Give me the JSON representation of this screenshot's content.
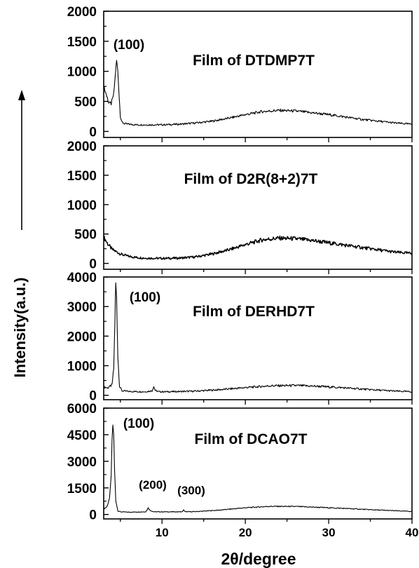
{
  "figure": {
    "ylabel": "Intensity(a.u.)",
    "xlabel": "2θ/degree"
  },
  "chart_data": [
    {
      "type": "line",
      "title": "Film of DTDMP7T",
      "xlim": [
        3,
        40
      ],
      "ylim": [
        -100,
        2000
      ],
      "yticks": [
        0,
        500,
        1000,
        1500,
        2000
      ],
      "xticks": [
        10,
        20,
        30,
        40
      ],
      "annotations": [
        {
          "text": "(100)",
          "x": 4.7,
          "y": 1480
        }
      ],
      "series": [
        {
          "x": [
            3,
            3.3,
            3.6,
            3.9,
            4.2,
            4.4,
            4.55,
            4.7,
            4.85,
            5.0,
            5.2,
            5.5,
            6,
            7,
            8,
            10,
            12,
            14,
            16,
            18,
            20,
            22,
            24,
            26,
            28,
            30,
            32,
            34,
            36,
            38,
            40
          ],
          "y": [
            750,
            620,
            480,
            460,
            620,
            950,
            1180,
            1000,
            600,
            250,
            150,
            130,
            120,
            110,
            110,
            110,
            120,
            140,
            170,
            220,
            280,
            330,
            350,
            340,
            310,
            280,
            240,
            200,
            170,
            140,
            120
          ]
        }
      ]
    },
    {
      "type": "line",
      "title": "Film of D2R(8+2)7T",
      "xlim": [
        3,
        40
      ],
      "ylim": [
        -100,
        2000
      ],
      "yticks": [
        0,
        500,
        1000,
        1500,
        2000
      ],
      "xticks": [
        10,
        20,
        30,
        40
      ],
      "series": [
        {
          "x": [
            3,
            3.5,
            4,
            5,
            6,
            7,
            8,
            10,
            12,
            14,
            16,
            18,
            20,
            22,
            24,
            26,
            28,
            30,
            32,
            34,
            36,
            38,
            40
          ],
          "y": [
            450,
            330,
            240,
            160,
            120,
            100,
            90,
            85,
            90,
            110,
            160,
            230,
            320,
            400,
            430,
            420,
            390,
            350,
            310,
            270,
            230,
            190,
            170
          ]
        }
      ]
    },
    {
      "type": "line",
      "title": "Film of DERHD7T",
      "xlim": [
        3,
        40
      ],
      "ylim": [
        -150,
        4000
      ],
      "yticks": [
        0,
        1000,
        2000,
        3000,
        4000
      ],
      "xticks": [
        10,
        20,
        30,
        40
      ],
      "annotations": [
        {
          "text": "(100)",
          "x": 5.2,
          "y": 3550
        }
      ],
      "series": [
        {
          "x": [
            3,
            3.5,
            4,
            4.2,
            4.35,
            4.45,
            4.55,
            4.7,
            4.9,
            5.2,
            6,
            8,
            8.8,
            9.0,
            9.2,
            9.6,
            11,
            14,
            17,
            20,
            23,
            26,
            29,
            32,
            35,
            38,
            40
          ],
          "y": [
            280,
            250,
            350,
            900,
            2600,
            3800,
            3300,
            1300,
            300,
            150,
            130,
            120,
            150,
            300,
            160,
            120,
            120,
            140,
            190,
            260,
            320,
            330,
            300,
            250,
            190,
            140,
            120
          ]
        }
      ]
    },
    {
      "type": "line",
      "title": "Film of DCAO7T",
      "xlim": [
        3,
        40
      ],
      "ylim": [
        -250,
        6000
      ],
      "yticks": [
        0,
        1500,
        3000,
        4500,
        6000
      ],
      "xticks": [
        10,
        20,
        30,
        40
      ],
      "annotations": [
        {
          "text": "(100)",
          "x": 4.6,
          "y": 5050
        },
        {
          "text": "(200)",
          "x": 8.1,
          "y": 850
        },
        {
          "text": "(300)",
          "x": 12.4,
          "y": 670
        }
      ],
      "series": [
        {
          "x": [
            3,
            3.4,
            3.7,
            3.9,
            4.0,
            4.1,
            4.2,
            4.3,
            4.45,
            4.7,
            5.0,
            6,
            8,
            8.2,
            8.35,
            8.5,
            9,
            11,
            12.4,
            12.6,
            12.8,
            14,
            17,
            20,
            23,
            26,
            29,
            32,
            35,
            38,
            40
          ],
          "y": [
            300,
            450,
            900,
            2200,
            4200,
            5050,
            4500,
            2500,
            800,
            200,
            150,
            130,
            150,
            250,
            400,
            250,
            150,
            150,
            150,
            250,
            150,
            160,
            250,
            380,
            460,
            450,
            400,
            340,
            270,
            210,
            170
          ]
        }
      ]
    }
  ]
}
